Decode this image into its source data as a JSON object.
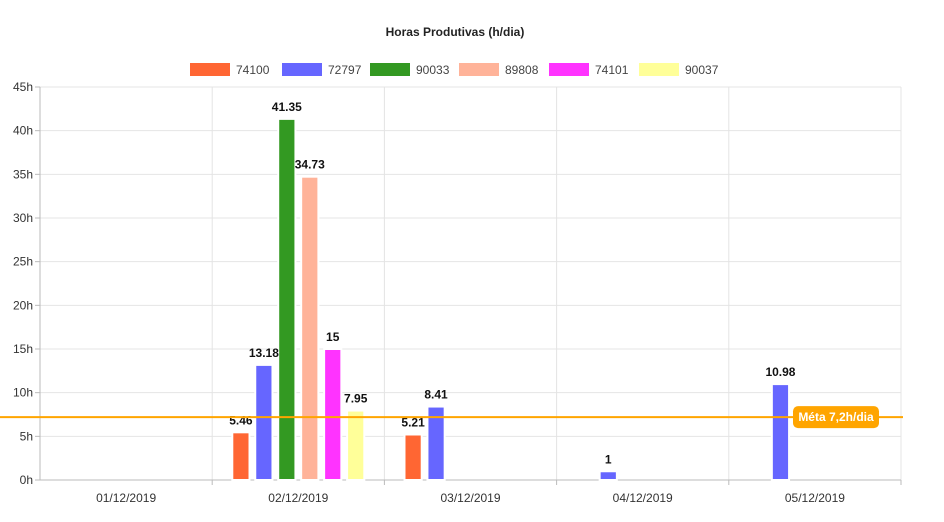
{
  "chart_data": {
    "type": "bar",
    "title": "Horas Produtivas (h/dia)",
    "categories": [
      "01/12/2019",
      "02/12/2019",
      "03/12/2019",
      "04/12/2019",
      "05/12/2019"
    ],
    "ylim": [
      0,
      45
    ],
    "y_ticks": [
      {
        "value": 0,
        "label": "0h"
      },
      {
        "value": 5,
        "label": "5h"
      },
      {
        "value": 10,
        "label": "10h"
      },
      {
        "value": 15,
        "label": "15h"
      },
      {
        "value": 20,
        "label": "20h"
      },
      {
        "value": 25,
        "label": "25h"
      },
      {
        "value": 30,
        "label": "30h"
      },
      {
        "value": 35,
        "label": "35h"
      },
      {
        "value": 40,
        "label": "40h"
      },
      {
        "value": 45,
        "label": "45h"
      }
    ],
    "legend_position": "top-center",
    "grid": true,
    "series": [
      {
        "name": "74100",
        "color": "#ff6633",
        "values": [
          null,
          5.46,
          5.21,
          null,
          null
        ],
        "labels": [
          "",
          "5.46",
          "5.21",
          "",
          ""
        ]
      },
      {
        "name": "72797",
        "color": "#6666ff",
        "values": [
          null,
          13.18,
          8.41,
          1,
          10.98
        ],
        "labels": [
          "",
          "13.18",
          "8.41",
          "1",
          "10.98"
        ]
      },
      {
        "name": "90033",
        "color": "#339922",
        "values": [
          null,
          41.35,
          null,
          null,
          null
        ],
        "labels": [
          "",
          "41.35",
          "",
          "",
          ""
        ]
      },
      {
        "name": "89808",
        "color": "#ffb399",
        "values": [
          null,
          34.73,
          null,
          null,
          null
        ],
        "labels": [
          "",
          "34.73",
          "",
          "",
          ""
        ]
      },
      {
        "name": "74101",
        "color": "#ff33ff",
        "values": [
          null,
          15,
          null,
          null,
          null
        ],
        "labels": [
          "",
          "15",
          "",
          "",
          ""
        ]
      },
      {
        "name": "90037",
        "color": "#ffff99",
        "values": [
          null,
          7.95,
          null,
          null,
          null
        ],
        "labels": [
          "",
          "7.95",
          "",
          "",
          ""
        ]
      }
    ],
    "goal": {
      "value": 7.2,
      "label": "Méta 7,2h/dia",
      "color": "#ffa500"
    }
  }
}
